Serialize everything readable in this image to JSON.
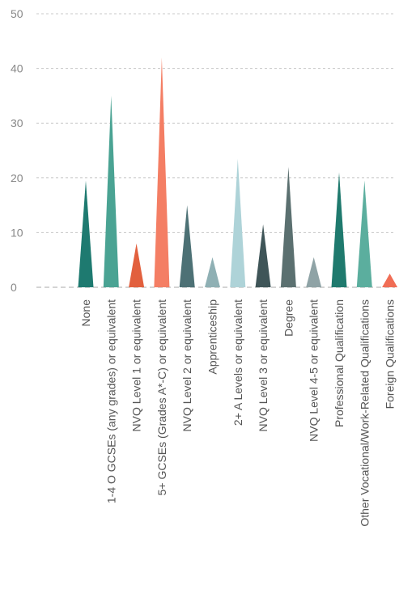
{
  "chart_data": {
    "type": "bar",
    "bar_shape": "triangle",
    "categories": [
      "None",
      "1-4 O GCSEs (any grades) or equivalent",
      "NVQ Level 1 or equivalent",
      "5+ GCSEs (Grades A*-C) or equivalent",
      "NVQ Level 2 or equivalent",
      "Apprenticeship",
      "2+ A Levels or equivalent",
      "NVQ Level 3 or equivalent",
      "Degree",
      "NVQ Level 4-5 or equivalent",
      "Professional Qualification",
      "Other Vocational/Work-Related Qualifications",
      "Foreign Qualifications"
    ],
    "values": [
      19.5,
      35,
      8,
      42,
      15,
      5.5,
      23.5,
      11.5,
      22,
      5.5,
      21,
      19.5,
      2.5
    ],
    "colors": [
      "#1e7a70",
      "#4aa393",
      "#e2603e",
      "#f47e64",
      "#4d7175",
      "#8fb0b4",
      "#aed3d8",
      "#3f5558",
      "#5b7070",
      "#8fa3a6",
      "#1f7a6e",
      "#5bae9e",
      "#f06d55"
    ],
    "title": "",
    "xlabel": "",
    "ylabel": "",
    "ylim": [
      0,
      50
    ],
    "yticks": [
      0,
      10,
      20,
      30,
      40,
      50
    ],
    "grid": true,
    "legend": "none"
  }
}
